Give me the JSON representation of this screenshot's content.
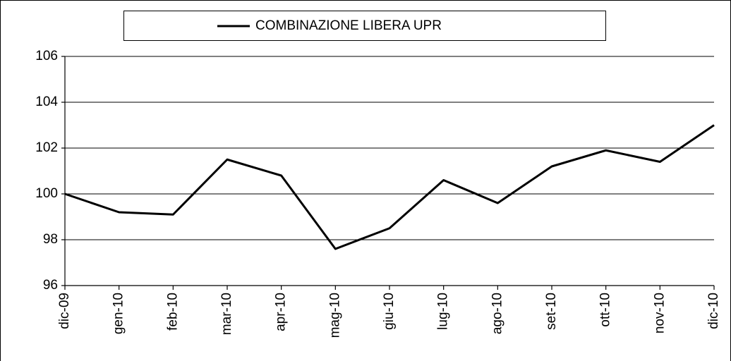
{
  "chart_data": {
    "type": "line",
    "categories": [
      "dic-09",
      "gen-10",
      "feb-10",
      "mar-10",
      "apr-10",
      "mag-10",
      "giu-10",
      "lug-10",
      "ago-10",
      "set-10",
      "ott-10",
      "nov-10",
      "dic-10"
    ],
    "series": [
      {
        "name": "COMBINAZIONE LIBERA UPR",
        "color": "#000000",
        "values": [
          100.0,
          99.2,
          99.1,
          101.5,
          100.8,
          97.6,
          98.5,
          100.6,
          99.6,
          101.2,
          101.9,
          101.4,
          103.0
        ]
      }
    ],
    "ylim": [
      96,
      106
    ],
    "yticks": [
      96,
      98,
      100,
      102,
      104,
      106
    ],
    "grid": true,
    "legend": "top"
  }
}
